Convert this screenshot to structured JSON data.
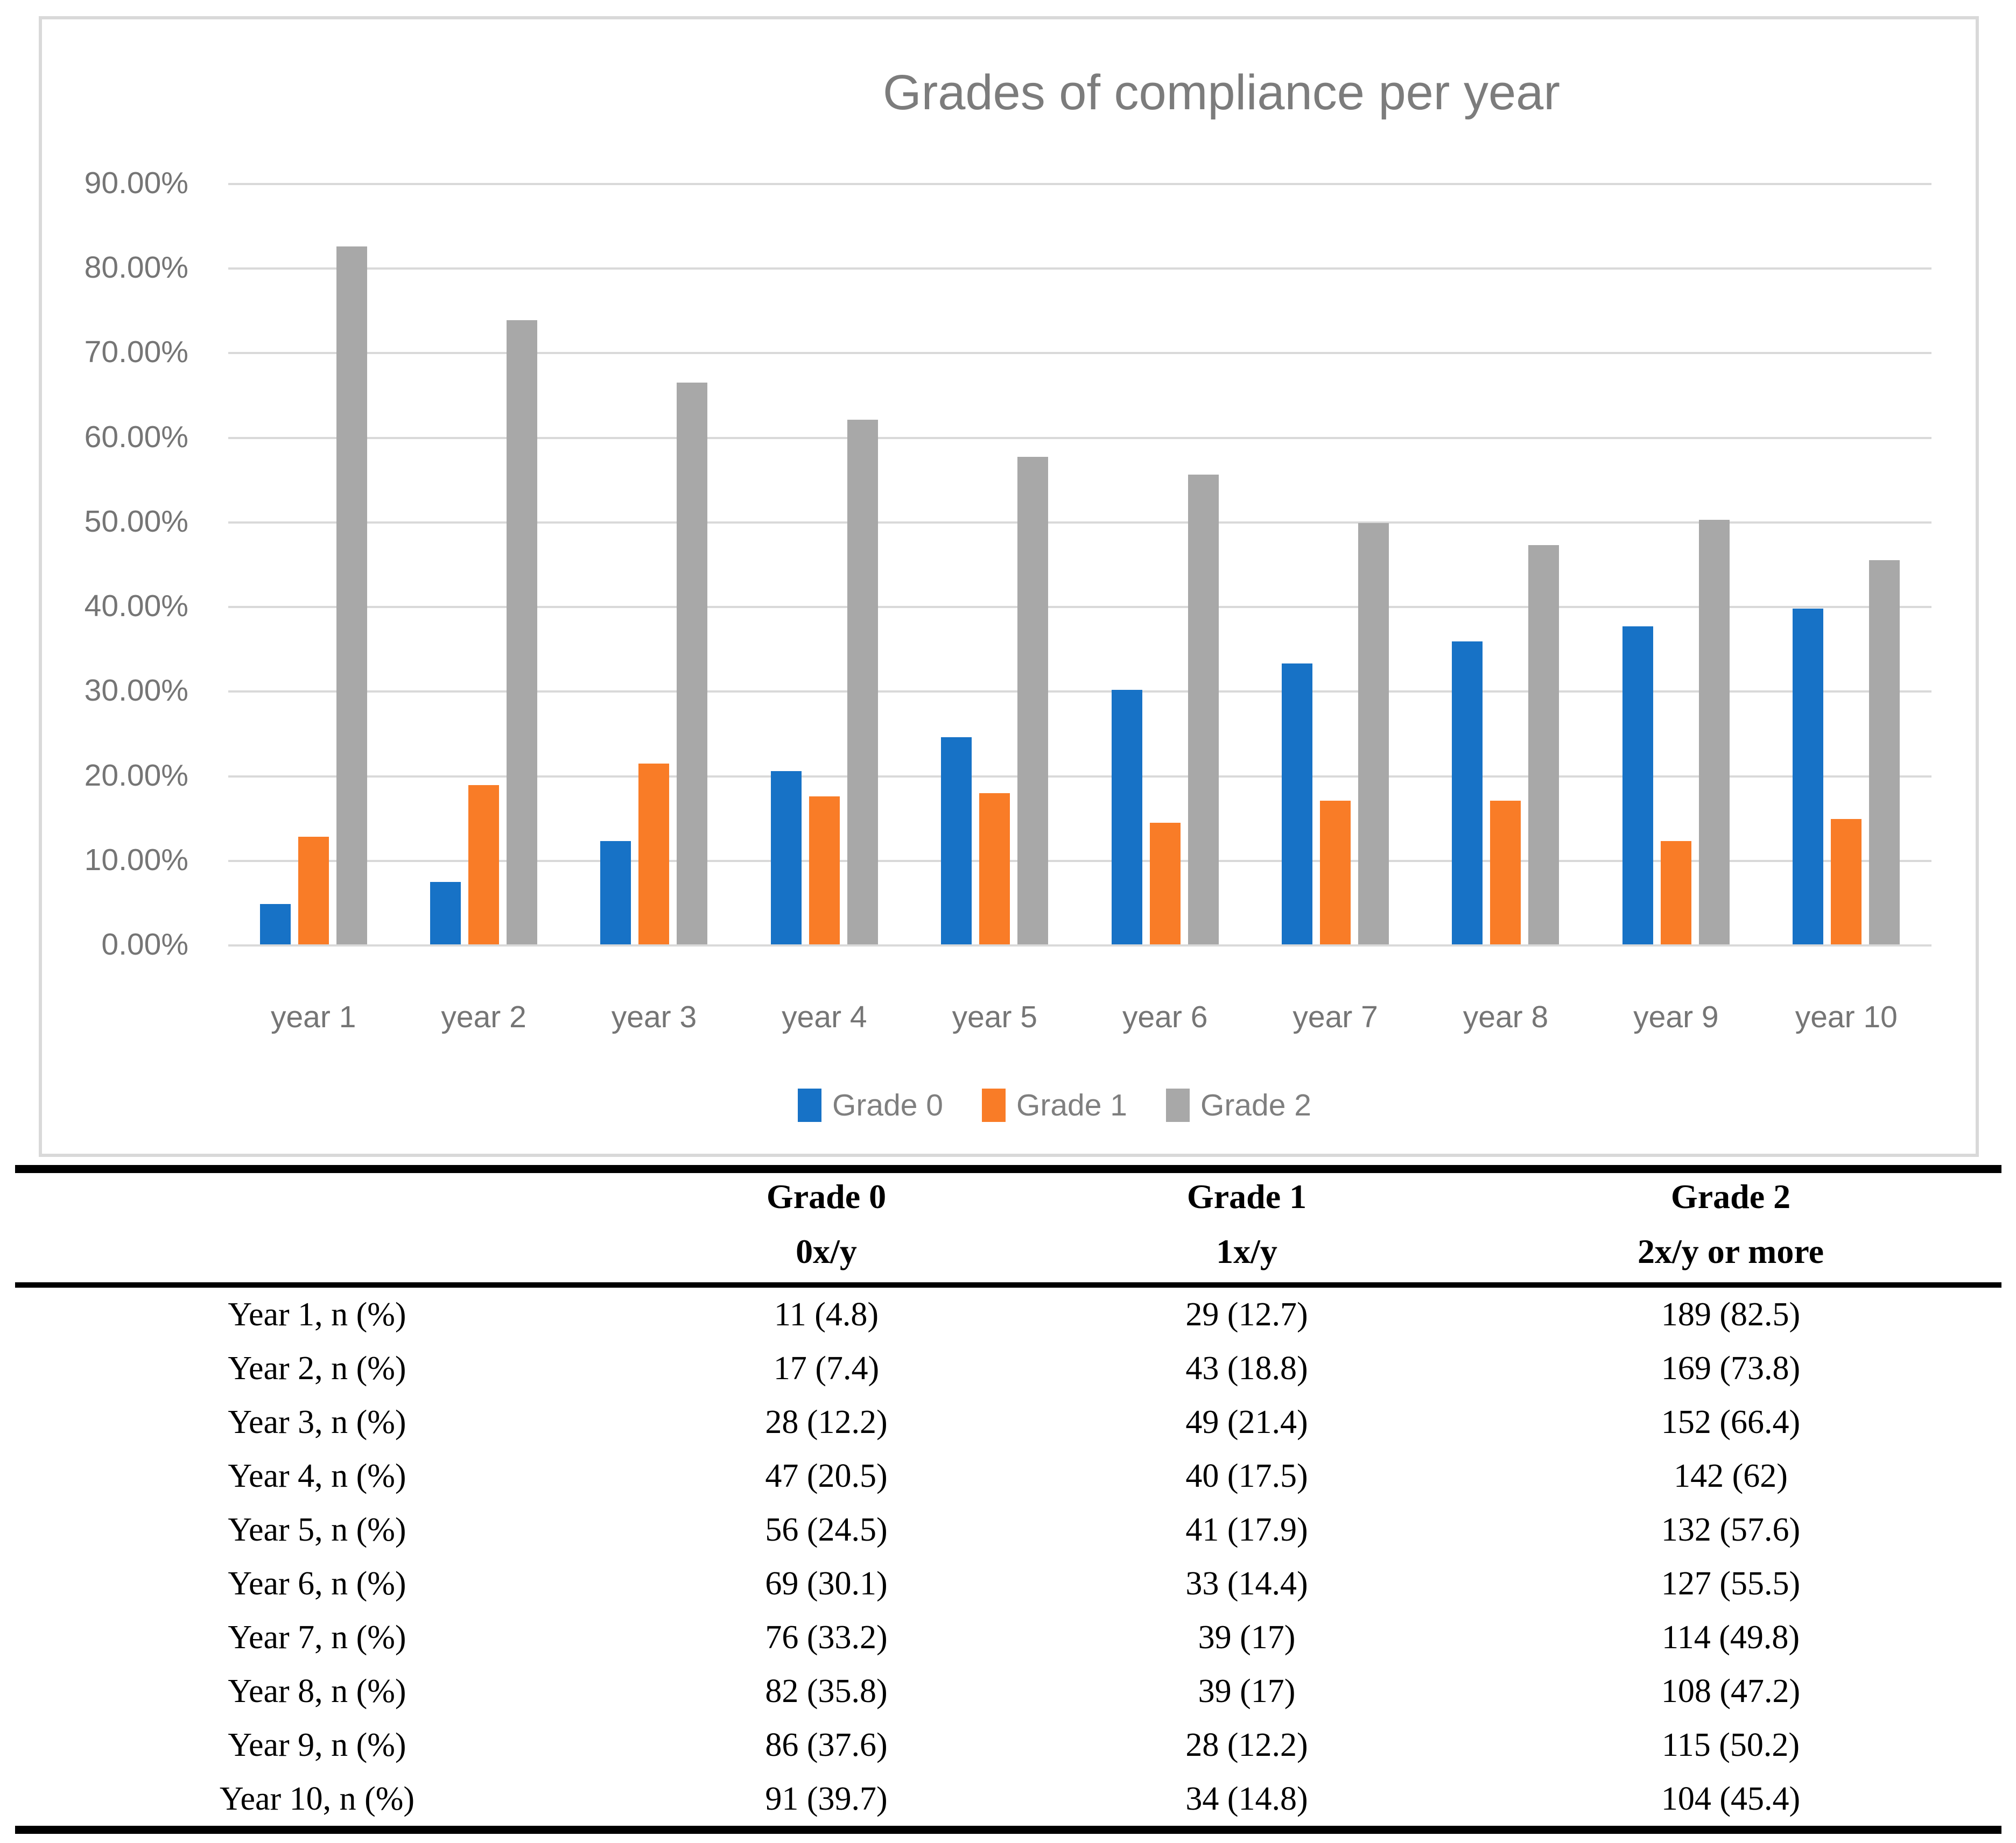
{
  "chart": {
    "title": "Grades of compliance per year",
    "title_color": "#7c7c7c",
    "axis_label_color": "#757575",
    "gridline_color": "#d9d9d9",
    "frame_border_color": "#d9d9d9",
    "y_ticks": [
      {
        "value": 90,
        "label": "90.00%"
      },
      {
        "value": 80,
        "label": "80.00%"
      },
      {
        "value": 70,
        "label": "70.00%"
      },
      {
        "value": 60,
        "label": "60.00%"
      },
      {
        "value": 50,
        "label": "50.00%"
      },
      {
        "value": 40,
        "label": "40.00%"
      },
      {
        "value": 30,
        "label": "30.00%"
      },
      {
        "value": 20,
        "label": "20.00%"
      },
      {
        "value": 10,
        "label": "10.00%"
      },
      {
        "value": 0,
        "label": "0.00%"
      }
    ]
  },
  "chart_data": {
    "type": "bar",
    "title": "Grades of compliance per year",
    "categories": [
      "year 1",
      "year 2",
      "year 3",
      "year 4",
      "year 5",
      "year 6",
      "year 7",
      "year 8",
      "year 9",
      "year 10"
    ],
    "series": [
      {
        "name": "Grade 0",
        "color": "#1772c6",
        "values": [
          4.8,
          7.4,
          12.2,
          20.5,
          24.5,
          30.1,
          33.2,
          35.8,
          37.6,
          39.7
        ]
      },
      {
        "name": "Grade 1",
        "color": "#f97c27",
        "values": [
          12.7,
          18.8,
          21.4,
          17.5,
          17.9,
          14.4,
          17,
          17,
          12.2,
          14.8
        ]
      },
      {
        "name": "Grade 2",
        "color": "#a8a8a8",
        "values": [
          82.5,
          73.8,
          66.4,
          62,
          57.6,
          55.5,
          49.8,
          47.2,
          50.2,
          45.4
        ]
      }
    ],
    "xlabel": "",
    "ylabel": "",
    "ylim": [
      0,
      90
    ],
    "y_tick_step": 10,
    "y_tick_format": "0.00%",
    "grid": true,
    "legend_position": "bottom"
  },
  "table": {
    "header": {
      "col1_line1": "",
      "col1_line2": "",
      "col2_line1": "Grade 0",
      "col2_line2": "0x/y",
      "col3_line1": "Grade 1",
      "col3_line2": "1x/y",
      "col4_line1": "Grade 2",
      "col4_line2": "2x/y or more"
    },
    "rows": [
      {
        "label": "Year 1, n (%)",
        "grade0": "11 (4.8)",
        "grade1": "29 (12.7)",
        "grade2": "189 (82.5)"
      },
      {
        "label": "Year 2, n (%)",
        "grade0": "17 (7.4)",
        "grade1": "43 (18.8)",
        "grade2": "169 (73.8)"
      },
      {
        "label": "Year 3, n (%)",
        "grade0": "28 (12.2)",
        "grade1": "49 (21.4)",
        "grade2": "152 (66.4)"
      },
      {
        "label": "Year 4, n (%)",
        "grade0": "47 (20.5)",
        "grade1": "40 (17.5)",
        "grade2": "142 (62)"
      },
      {
        "label": "Year 5, n (%)",
        "grade0": "56 (24.5)",
        "grade1": "41 (17.9)",
        "grade2": "132 (57.6)"
      },
      {
        "label": "Year 6, n (%)",
        "grade0": "69 (30.1)",
        "grade1": "33 (14.4)",
        "grade2": "127 (55.5)"
      },
      {
        "label": "Year 7, n (%)",
        "grade0": "76 (33.2)",
        "grade1": "39 (17)",
        "grade2": "114 (49.8)"
      },
      {
        "label": "Year 8, n (%)",
        "grade0": "82 (35.8)",
        "grade1": "39 (17)",
        "grade2": "108 (47.2)"
      },
      {
        "label": "Year 9, n (%)",
        "grade0": "86 (37.6)",
        "grade1": "28 (12.2)",
        "grade2": "115 (50.2)"
      },
      {
        "label": "Year 10, n (%)",
        "grade0": "91 (39.7)",
        "grade1": "34 (14.8)",
        "grade2": "104 (45.4)"
      }
    ]
  }
}
